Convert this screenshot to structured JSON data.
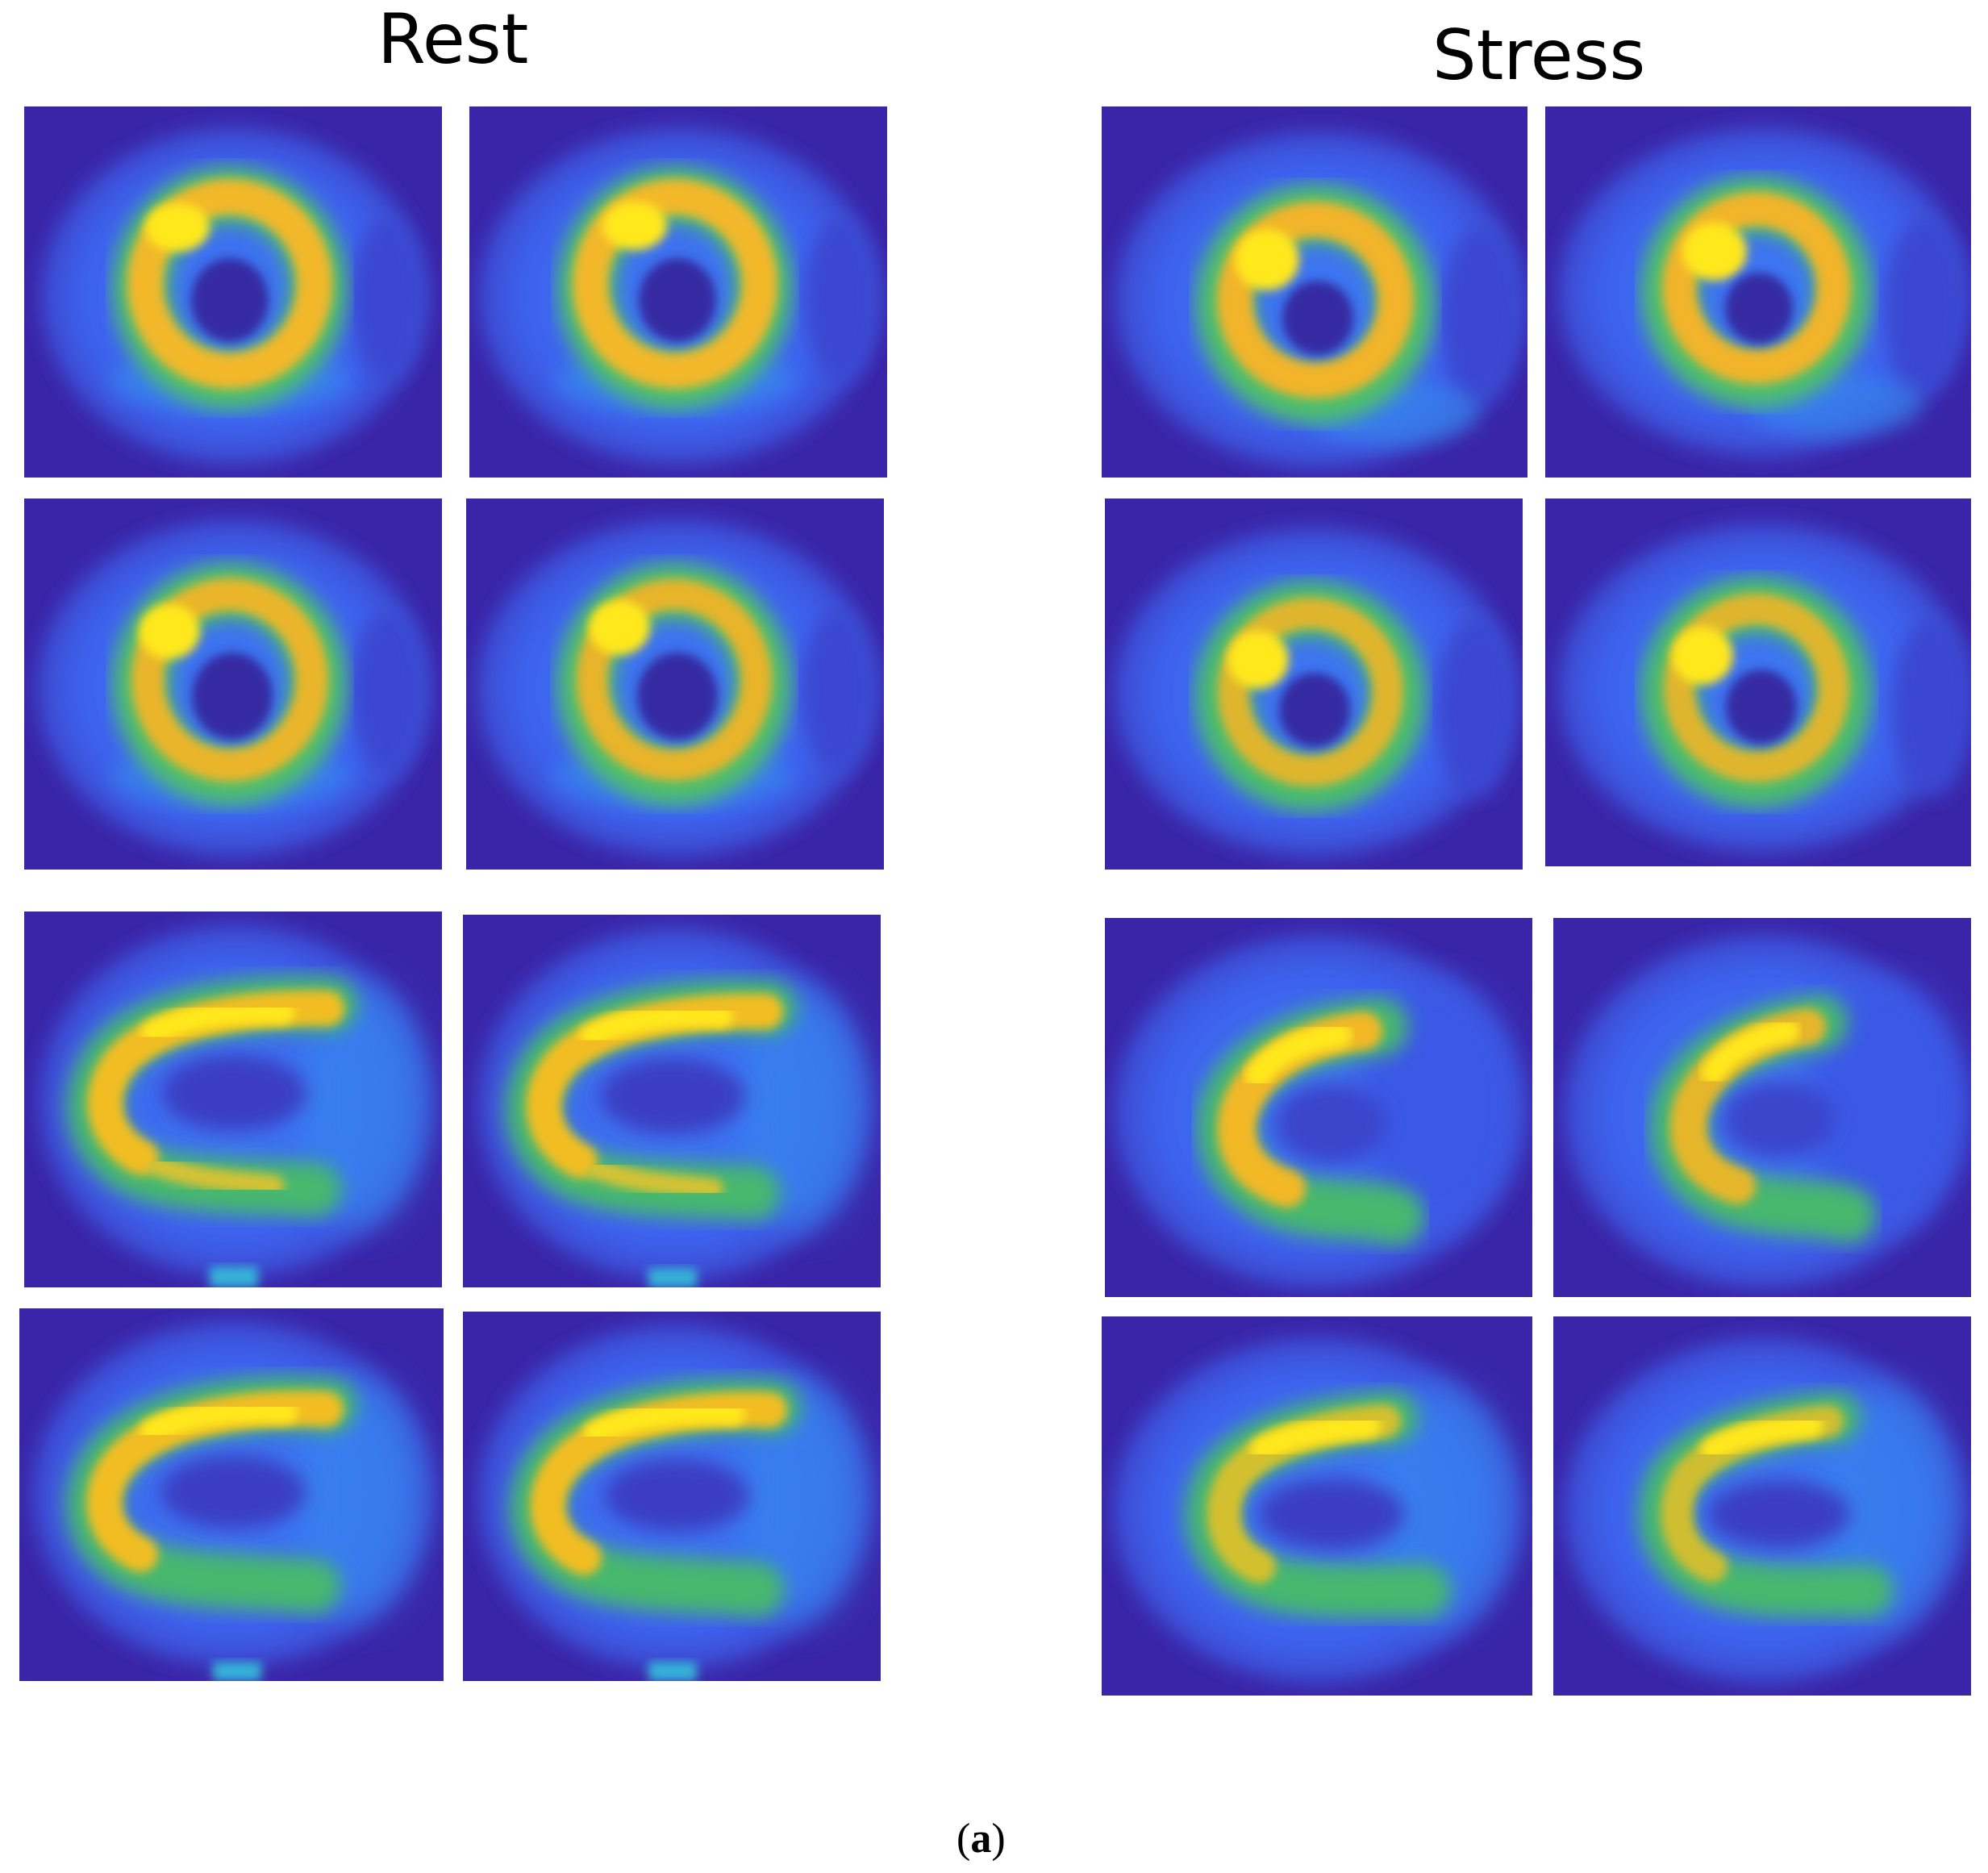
{
  "titles": {
    "rest": "Rest",
    "stress": "Stress"
  },
  "caption": {
    "open": "(",
    "letter": "a",
    "close": ")"
  },
  "colors": {
    "background": "#3a25a8",
    "body_glow": "#3d6af2",
    "outer_glow": "#2f86ee",
    "ring_yellow": "#f7d61f",
    "ring_orange": "#f2b52a",
    "ring_green": "#45b870",
    "cavity": "#3429a0"
  },
  "panel_groups": [
    {
      "group": "rest",
      "view": "short-axis",
      "count": 4
    },
    {
      "group": "stress",
      "view": "short-axis",
      "count": 4
    },
    {
      "group": "rest",
      "view": "long-axis",
      "count": 4
    },
    {
      "group": "stress",
      "view": "long-axis",
      "count": 4
    }
  ]
}
